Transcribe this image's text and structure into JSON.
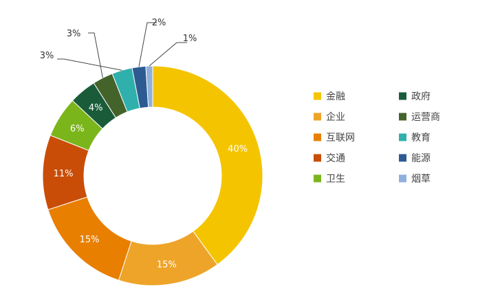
{
  "chart_data": {
    "type": "pie",
    "variant": "donut",
    "title": "",
    "unit": "%",
    "categories": [
      "金融",
      "企业",
      "互联网",
      "交通",
      "卫生",
      "政府",
      "运营商",
      "教育",
      "能源",
      "烟草"
    ],
    "values": [
      40,
      15,
      15,
      11,
      6,
      4,
      3,
      3,
      2,
      1
    ],
    "labels": [
      "40%",
      "15%",
      "15%",
      "11%",
      "6%",
      "4%",
      "3%",
      "3%",
      "2%",
      "1%"
    ],
    "colors": [
      "#F5C400",
      "#EEA429",
      "#E87F00",
      "#C94D07",
      "#7BB51C",
      "#1A5C3A",
      "#44632B",
      "#2FB0AC",
      "#2D5A91",
      "#8FB0DC"
    ],
    "label_placement": [
      "inside",
      "inside",
      "inside",
      "inside",
      "inside",
      "inside",
      "callout",
      "callout",
      "callout",
      "callout"
    ],
    "legend": {
      "position": "right",
      "columns": 2
    }
  }
}
